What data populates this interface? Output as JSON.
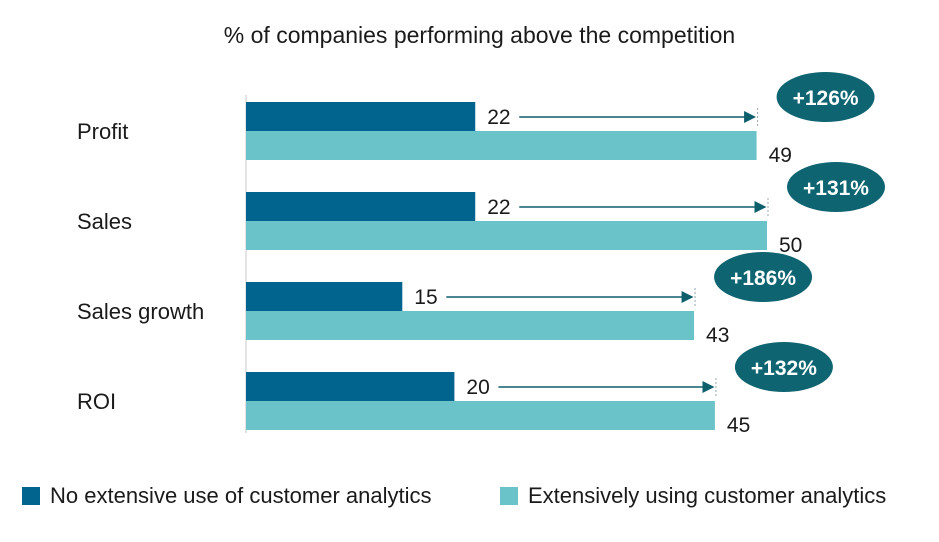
{
  "chart_data": {
    "type": "bar",
    "orientation": "horizontal",
    "title": "% of companies performing above the competition",
    "categories": [
      "Profit",
      "Sales",
      "Sales growth",
      "ROI"
    ],
    "series": [
      {
        "name": "No extensive use of customer analytics",
        "color": "#00648f",
        "values": [
          22,
          22,
          15,
          20
        ]
      },
      {
        "name": "Extensively using customer analytics",
        "color": "#6ac3c9",
        "values": [
          49,
          50,
          43,
          45
        ]
      }
    ],
    "annotations": [
      "+126%",
      "+131%",
      "+186%",
      "+132%"
    ],
    "annotation_color": "#0e6470",
    "grid": false,
    "legend_position": "bottom"
  }
}
